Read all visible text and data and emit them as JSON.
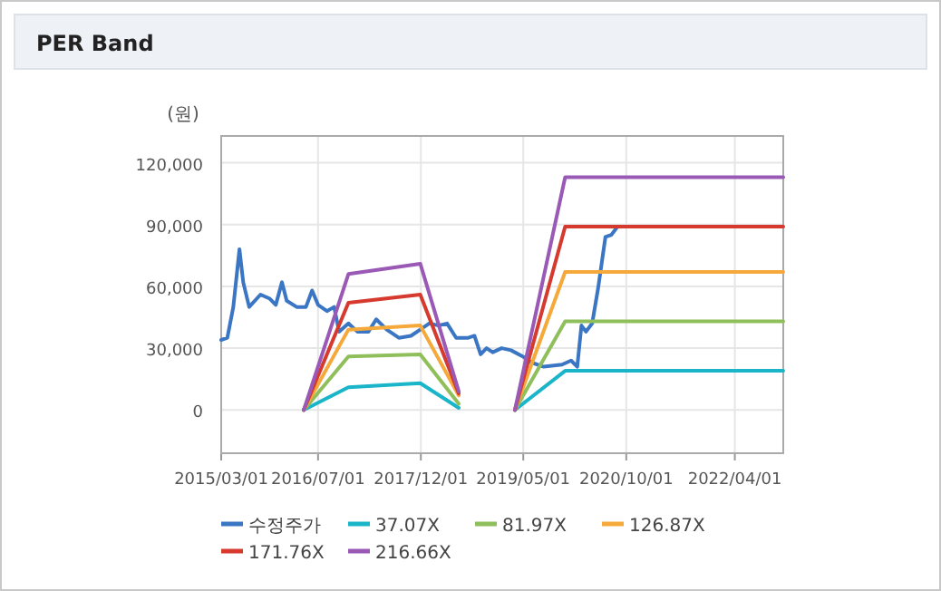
{
  "chart_data": {
    "type": "line",
    "title": "PER Band",
    "ylabel": "(원)",
    "legend": "bottom",
    "grid": true,
    "xlim": [
      "2015-03-01",
      "2022-12-01"
    ],
    "xticks": [
      {
        "value": "2015-03-01",
        "label": "2015/03/01"
      },
      {
        "value": "2016-07-01",
        "label": "2016/07/01"
      },
      {
        "value": "2017-12-01",
        "label": "2017/12/01"
      },
      {
        "value": "2019-05-01",
        "label": "2019/05/01"
      },
      {
        "value": "2020-10-01",
        "label": "2020/10/01"
      },
      {
        "value": "2022-04-01",
        "label": "2022/04/01"
      }
    ],
    "ylim": [
      -21000,
      133000
    ],
    "yticks": [
      0,
      {
        "value": 30000,
        "label": "30,000"
      },
      {
        "value": 60000,
        "label": "60,000"
      },
      {
        "value": 90000,
        "label": "90,000"
      },
      {
        "value": 120000,
        "label": "120,000"
      }
    ],
    "series": [
      {
        "name": "수정주가",
        "color": "#3a76c4",
        "x": [
          "2015-03-01",
          "2015-04-01",
          "2015-05-01",
          "2015-06-01",
          "2015-06-20",
          "2015-07-20",
          "2015-09-15",
          "2015-11-01",
          "2015-12-01",
          "2016-01-01",
          "2016-01-25",
          "2016-03-15",
          "2016-05-01",
          "2016-06-01",
          "2016-07-01",
          "2016-08-15",
          "2016-09-20",
          "2016-10-15",
          "2016-12-01",
          "2017-01-15",
          "2017-03-12",
          "2017-04-20",
          "2017-06-12",
          "2017-08-12",
          "2017-10-12",
          "2017-11-28",
          "2018-01-12",
          "2018-02-28",
          "2018-04-12",
          "2018-05-28",
          "2018-07-28",
          "2018-08-28",
          "2018-09-28",
          "2018-10-28",
          "2018-11-28",
          "2019-01-12",
          "2019-02-28",
          "2019-04-28",
          "2019-06-12",
          "2019-08-12",
          "2019-11-12",
          "2019-12-28",
          "2020-01-28",
          "2020-02-18",
          "2020-03-12",
          "2020-04-12",
          "2020-05-12",
          "2020-06-18",
          "2020-07-18",
          "2020-08-18"
        ],
        "values": [
          34000,
          35000,
          50000,
          78000,
          62000,
          50000,
          56000,
          54000,
          51000,
          62000,
          53000,
          50000,
          50000,
          58000,
          51000,
          48000,
          50000,
          38000,
          42000,
          38000,
          38000,
          44000,
          39000,
          35000,
          36000,
          39000,
          42000,
          41000,
          42000,
          35000,
          35000,
          36000,
          27000,
          30000,
          28000,
          30000,
          29000,
          26000,
          23000,
          21000,
          22000,
          24000,
          21000,
          41000,
          38000,
          42000,
          59000,
          84000,
          85000,
          89000
        ]
      },
      {
        "name": "37.07X",
        "color": "#1bb5c9",
        "x": [
          "2016-04-20",
          "2016-12-01",
          "2017-11-28",
          "2018-06-10"
        ],
        "values": [
          0,
          11000,
          13000,
          1000
        ]
      },
      {
        "name": "81.97X",
        "color": "#8fbf5a",
        "x": [
          "2016-04-20",
          "2016-12-01",
          "2017-11-28",
          "2018-06-10"
        ],
        "values": [
          0,
          26000,
          27000,
          3000
        ]
      },
      {
        "name": "126.87X",
        "color": "#f5a93a",
        "x": [
          "2016-04-20",
          "2016-12-01",
          "2017-11-28",
          "2018-06-10"
        ],
        "values": [
          0,
          39000,
          41000,
          7000
        ]
      },
      {
        "name": "171.76X",
        "color": "#d6392e",
        "x": [
          "2016-04-20",
          "2016-12-01",
          "2017-11-28",
          "2018-06-10"
        ],
        "values": [
          0,
          52000,
          56000,
          8000
        ]
      },
      {
        "name": "216.66X",
        "color": "#9b59b6",
        "x": [
          "2016-04-20",
          "2016-12-01",
          "2017-11-28",
          "2018-06-10"
        ],
        "values": [
          0,
          66000,
          71000,
          9000
        ]
      },
      {
        "color": "#1bb5c9",
        "x": [
          "2019-03-20",
          "2019-11-28",
          "2022-12-01"
        ],
        "values": [
          0,
          19000,
          19000
        ]
      },
      {
        "color": "#8fbf5a",
        "x": [
          "2019-03-20",
          "2019-11-28",
          "2022-12-01"
        ],
        "values": [
          0,
          43000,
          43000
        ]
      },
      {
        "color": "#f5a93a",
        "x": [
          "2019-03-20",
          "2019-11-28",
          "2022-12-01"
        ],
        "values": [
          0,
          67000,
          67000
        ]
      },
      {
        "color": "#d6392e",
        "x": [
          "2019-03-20",
          "2019-11-28",
          "2022-12-01"
        ],
        "values": [
          0,
          89000,
          89000
        ]
      },
      {
        "color": "#9b59b6",
        "x": [
          "2019-03-20",
          "2019-11-28",
          "2022-12-01"
        ],
        "values": [
          0,
          113000,
          113000
        ]
      }
    ]
  }
}
